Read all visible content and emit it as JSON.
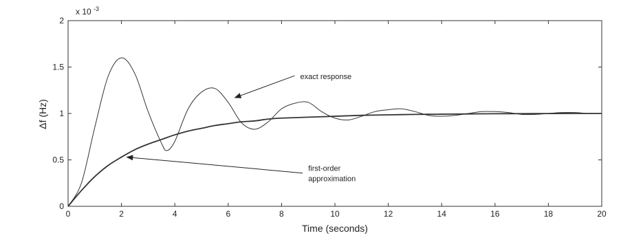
{
  "chart_data": {
    "type": "line",
    "title": "",
    "xlabel": "Time (seconds)",
    "ylabel": "Δf (Hz)",
    "y_multiplier": "x 10",
    "y_multiplier_exponent": "-3",
    "xlim": [
      0,
      20
    ],
    "ylim": [
      0,
      2
    ],
    "x_ticks": [
      "0",
      "2",
      "4",
      "6",
      "8",
      "10",
      "12",
      "14",
      "16",
      "18",
      "20"
    ],
    "y_ticks": [
      "0",
      "0.5",
      "1",
      "1.5",
      "2"
    ],
    "grid": false,
    "series": [
      {
        "label": "exact response",
        "x": [
          0,
          0.5,
          1,
          1.5,
          2,
          2.5,
          3,
          3.5,
          3.7,
          4,
          4.5,
          5,
          5.5,
          6,
          6.5,
          7,
          7.5,
          8,
          8.5,
          9,
          9.5,
          10,
          10.5,
          11,
          11.5,
          12,
          12.5,
          13,
          13.5,
          14,
          14.5,
          15,
          15.5,
          16,
          16.5,
          17,
          17.5,
          18,
          18.5,
          19,
          19.5,
          20
        ],
        "y": [
          0,
          0.25,
          0.85,
          1.4,
          1.6,
          1.43,
          1.02,
          0.68,
          0.6,
          0.7,
          1.05,
          1.23,
          1.27,
          1.12,
          0.9,
          0.83,
          0.91,
          1.05,
          1.11,
          1.12,
          1.02,
          0.95,
          0.93,
          0.97,
          1.02,
          1.04,
          1.05,
          1.02,
          0.98,
          0.97,
          0.98,
          1.0,
          1.02,
          1.02,
          1.01,
          0.99,
          0.99,
          1.0,
          1.01,
          1.01,
          1.0,
          1.0
        ]
      },
      {
        "label": "first-order approximation",
        "x": [
          0,
          0.5,
          1,
          1.5,
          2,
          2.5,
          3,
          3.5,
          4,
          4.5,
          5,
          5.5,
          6,
          6.5,
          7,
          7.5,
          8,
          9,
          10,
          11,
          12,
          13,
          14,
          15,
          16,
          17,
          18,
          19,
          20
        ],
        "y": [
          0,
          0.17,
          0.32,
          0.44,
          0.53,
          0.61,
          0.67,
          0.72,
          0.77,
          0.81,
          0.84,
          0.87,
          0.89,
          0.91,
          0.92,
          0.94,
          0.95,
          0.96,
          0.97,
          0.98,
          0.985,
          0.99,
          0.992,
          0.995,
          0.997,
          0.998,
          0.999,
          1.0,
          1.0
        ]
      }
    ],
    "annotations": [
      {
        "lines": [
          "exact response"
        ],
        "text_at": [
          8.7,
          1.37
        ],
        "arrow_to": [
          6.25,
          1.17
        ]
      },
      {
        "lines": [
          "first-order",
          "approximation"
        ],
        "text_at": [
          9.0,
          0.38
        ],
        "arrow_to": [
          2.2,
          0.53
        ]
      }
    ]
  }
}
